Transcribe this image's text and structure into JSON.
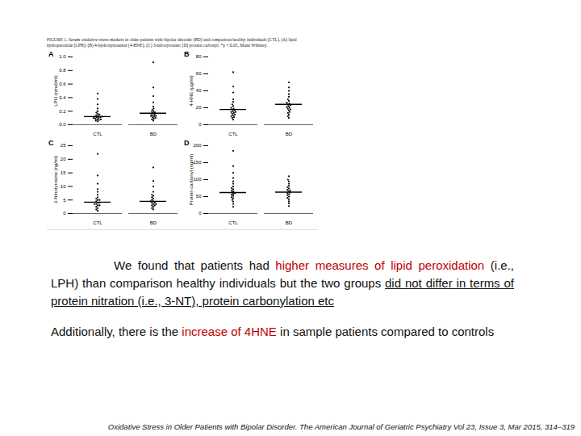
{
  "caption": "FIGURE 1. Serum oxidative stress markers in older patients with bipolar disorder (BD) and comparison healthy individuals (CTL). (A) lipid hydroperoxide (LPH); (B) 4-hydroxynonenal (4-HNE); (C) 3-nitrotyrosine; (D) protein carbonyl. *p < 0.05, Mann Whitney.",
  "chart_data": [
    {
      "type": "scatter",
      "title": "A",
      "ylabel": "LPH (nmol/ml)",
      "categories": [
        "CTL",
        "BD"
      ],
      "color": "#000000",
      "marker": "circle",
      "values": [
        [
          0.05,
          0.06,
          0.07,
          0.08,
          0.08,
          0.09,
          0.1,
          0.1,
          0.11,
          0.11,
          0.12,
          0.12,
          0.13,
          0.14,
          0.15,
          0.16,
          0.18,
          0.2,
          0.24,
          0.3,
          0.38,
          0.46
        ],
        [
          0.06,
          0.08,
          0.09,
          0.1,
          0.11,
          0.12,
          0.13,
          0.13,
          0.14,
          0.15,
          0.16,
          0.17,
          0.18,
          0.19,
          0.2,
          0.22,
          0.24,
          0.27,
          0.33,
          0.42,
          0.55,
          0.92
        ]
      ],
      "means": [
        0.12,
        0.17
      ],
      "ylim": [
        0,
        1
      ],
      "yticks": [
        {
          "value": 0,
          "label": "0.0"
        },
        0.2,
        0.4,
        0.6,
        0.8,
        {
          "value": 1,
          "label": "1.0"
        }
      ]
    },
    {
      "type": "scatter",
      "title": "B",
      "ylabel": "4-HNE (µg/ml)",
      "categories": [
        "CTL",
        "BD"
      ],
      "color": "#000000",
      "marker": "circle",
      "values": [
        [
          6,
          8,
          9,
          10,
          11,
          12,
          13,
          14,
          15,
          15,
          16,
          17,
          18,
          19,
          20,
          22,
          24,
          27,
          30,
          38,
          45,
          62
        ],
        [
          8,
          10,
          12,
          14,
          15,
          17,
          18,
          19,
          20,
          21,
          22,
          23,
          24,
          25,
          26,
          28,
          30,
          33,
          36,
          40,
          44,
          50
        ]
      ],
      "means": [
        18,
        24
      ],
      "ylim": [
        0,
        80
      ],
      "yticks": [
        0,
        20,
        40,
        60,
        80
      ]
    },
    {
      "type": "scatter",
      "title": "C",
      "ylabel": "3-Nitrotyrosine (ng/ml)",
      "categories": [
        "CTL",
        "BD"
      ],
      "color": "#000000",
      "marker": "circle",
      "values": [
        [
          1,
          1.5,
          2,
          2.5,
          3,
          3,
          3.5,
          3.5,
          4,
          4,
          4.5,
          5,
          5,
          5.5,
          6,
          7,
          8,
          9,
          11,
          14,
          22
        ],
        [
          1.5,
          2,
          2.5,
          3,
          3,
          3.5,
          3.5,
          4,
          4,
          4.5,
          4.5,
          5,
          5.5,
          6,
          6.5,
          7,
          8,
          10,
          12,
          17
        ]
      ],
      "means": [
        4.2,
        4.5
      ],
      "ylim": [
        0,
        25
      ],
      "yticks": [
        0,
        5,
        10,
        15,
        20,
        25
      ]
    },
    {
      "type": "scatter",
      "title": "D",
      "ylabel": "Protein carbonyl (ng/ml)",
      "categories": [
        "CTL",
        "BD"
      ],
      "color": "#000000",
      "marker": "circle",
      "values": [
        [
          20,
          28,
          35,
          40,
          45,
          48,
          52,
          55,
          58,
          60,
          62,
          65,
          68,
          72,
          75,
          80,
          88,
          95,
          105,
          120,
          140,
          185
        ],
        [
          22,
          30,
          36,
          42,
          46,
          50,
          54,
          57,
          60,
          62,
          65,
          68,
          70,
          74,
          78,
          82,
          88,
          95,
          100,
          110
        ]
      ],
      "means": [
        62,
        63
      ],
      "ylim": [
        0,
        200
      ],
      "yticks": [
        0,
        50,
        100,
        150,
        200
      ]
    }
  ],
  "paragraphs": [
    [
      {
        "text": "We found that patients had ",
        "style": "normal"
      },
      {
        "text": "higher measures of lipid peroxidation",
        "style": "red"
      },
      {
        "text": " (i.e., LPH) than comparison healthy individuals but the two groups ",
        "style": "normal"
      },
      {
        "text": "did not differ in terms of protein nitration (i.e., 3-NT), protein carbonylation etc",
        "style": "underline"
      }
    ],
    [
      {
        "text": "Additionally, there is the ",
        "style": "normal"
      },
      {
        "text": "increase of 4HNE",
        "style": "red"
      },
      {
        "text": " in sample patients compared to controls",
        "style": "normal"
      }
    ]
  ],
  "citation": "Oxidative Stress in Older Patients with Bipolar Disorder. The American Journal of Geriatric Psychiatry Vol 23, Issue 3, Mar 2015, 314–319"
}
